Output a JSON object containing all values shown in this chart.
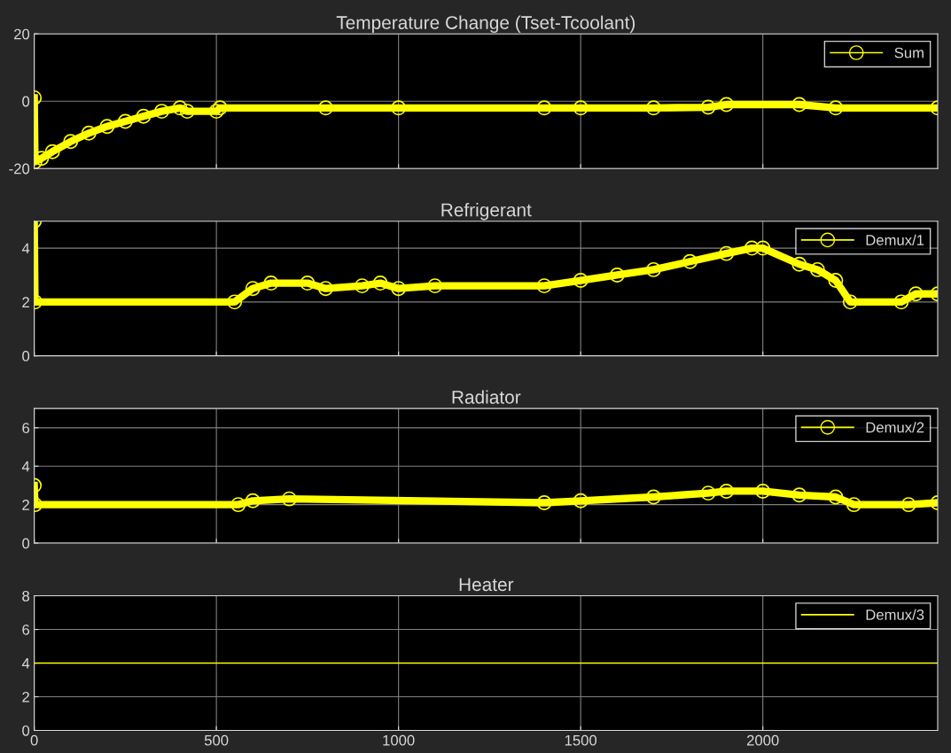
{
  "chart_data": [
    {
      "type": "line",
      "title": "Temperature Change (Tset-Tcoolant)",
      "xlim": [
        0,
        2480
      ],
      "xticks": [
        0,
        500,
        1000,
        1500,
        2000
      ],
      "ylim": [
        -20,
        20
      ],
      "yticks": [
        -20,
        0,
        20
      ],
      "grid": true,
      "legend": "top right",
      "tick_labels": "y",
      "marker": "circle",
      "series": [
        {
          "name": "Sum",
          "color": "#ffff00",
          "x": [
            0,
            2,
            20,
            50,
            100,
            150,
            200,
            250,
            300,
            350,
            400,
            420,
            500,
            510,
            800,
            1000,
            1400,
            1500,
            1700,
            1850,
            1900,
            2100,
            2200,
            2480
          ],
          "values": [
            1,
            -18,
            -17,
            -15,
            -12,
            -9.5,
            -7.5,
            -6,
            -4.5,
            -3,
            -2,
            -3,
            -3,
            -2,
            -2,
            -2,
            -2,
            -2,
            -2,
            -1.8,
            -1,
            -1,
            -2,
            -2
          ]
        }
      ]
    },
    {
      "type": "line",
      "title": "Refrigerant",
      "xlim": [
        0,
        2480
      ],
      "xticks": [
        0,
        500,
        1000,
        1500,
        2000
      ],
      "ylim": [
        0,
        5
      ],
      "yticks": [
        0,
        2,
        4
      ],
      "grid": true,
      "legend": "top right",
      "tick_labels": "y",
      "marker": "circle",
      "series": [
        {
          "name": "Demux/1",
          "color": "#ffff00",
          "x": [
            0,
            2,
            550,
            600,
            650,
            750,
            800,
            900,
            950,
            1000,
            1100,
            1400,
            1500,
            1600,
            1700,
            1800,
            1900,
            1970,
            2000,
            2100,
            2150,
            2200,
            2240,
            2380,
            2420,
            2480
          ],
          "values": [
            5,
            2,
            2,
            2.5,
            2.7,
            2.7,
            2.5,
            2.6,
            2.7,
            2.5,
            2.6,
            2.6,
            2.8,
            3.0,
            3.2,
            3.5,
            3.8,
            4.0,
            4.0,
            3.4,
            3.2,
            2.8,
            2.0,
            2.0,
            2.3,
            2.3
          ]
        }
      ]
    },
    {
      "type": "line",
      "title": "Radiator",
      "xlim": [
        0,
        2480
      ],
      "xticks": [
        0,
        500,
        1000,
        1500,
        2000
      ],
      "ylim": [
        0,
        7
      ],
      "yticks": [
        0,
        2,
        4,
        6
      ],
      "grid": true,
      "legend": "top right",
      "tick_labels": "y",
      "marker": "circle",
      "series": [
        {
          "name": "Demux/2",
          "color": "#ffff00",
          "x": [
            0,
            2,
            560,
            600,
            700,
            1400,
            1500,
            1700,
            1850,
            1900,
            2000,
            2100,
            2200,
            2250,
            2400,
            2480
          ],
          "values": [
            3,
            2,
            2,
            2.2,
            2.3,
            2.1,
            2.2,
            2.4,
            2.6,
            2.7,
            2.7,
            2.5,
            2.4,
            2.0,
            2.0,
            2.1
          ]
        }
      ]
    },
    {
      "type": "line",
      "title": "Heater",
      "xlim": [
        0,
        2480
      ],
      "xticks": [
        0,
        500,
        1000,
        1500,
        2000
      ],
      "ylim": [
        0,
        8
      ],
      "yticks": [
        0,
        2,
        4,
        6,
        8
      ],
      "grid": true,
      "legend": "top right",
      "marker": "none",
      "series": [
        {
          "name": "Demux/3",
          "color": "#ffff00",
          "x": [
            0,
            2480
          ],
          "values": [
            4,
            4
          ]
        }
      ]
    }
  ]
}
